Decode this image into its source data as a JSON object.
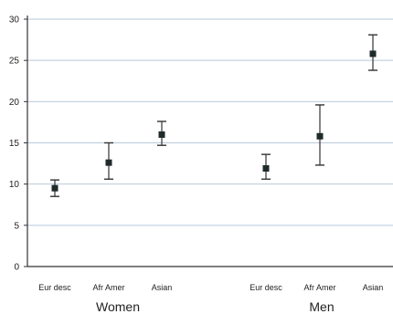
{
  "chart_data": {
    "type": "scatter",
    "title": "",
    "xlabel": "",
    "ylabel": "",
    "ylim": [
      0,
      30
    ],
    "yticks": [
      0,
      5,
      10,
      15,
      20,
      25,
      30
    ],
    "grid": "horizontal",
    "groups": [
      {
        "label": "Women",
        "points": [
          {
            "category": "Eur desc",
            "value": 9.5,
            "low": 8.5,
            "high": 10.5
          },
          {
            "category": "Afr Amer",
            "value": 12.6,
            "low": 10.6,
            "high": 15.0
          },
          {
            "category": "Asian",
            "value": 16.0,
            "low": 14.7,
            "high": 17.6
          }
        ]
      },
      {
        "label": "Men",
        "points": [
          {
            "category": "Eur desc",
            "value": 11.9,
            "low": 10.6,
            "high": 13.6
          },
          {
            "category": "Afr Amer",
            "value": 15.8,
            "low": 12.3,
            "high": 19.6
          },
          {
            "category": "Asian",
            "value": 25.8,
            "low": 23.8,
            "high": 28.1
          }
        ]
      }
    ]
  }
}
